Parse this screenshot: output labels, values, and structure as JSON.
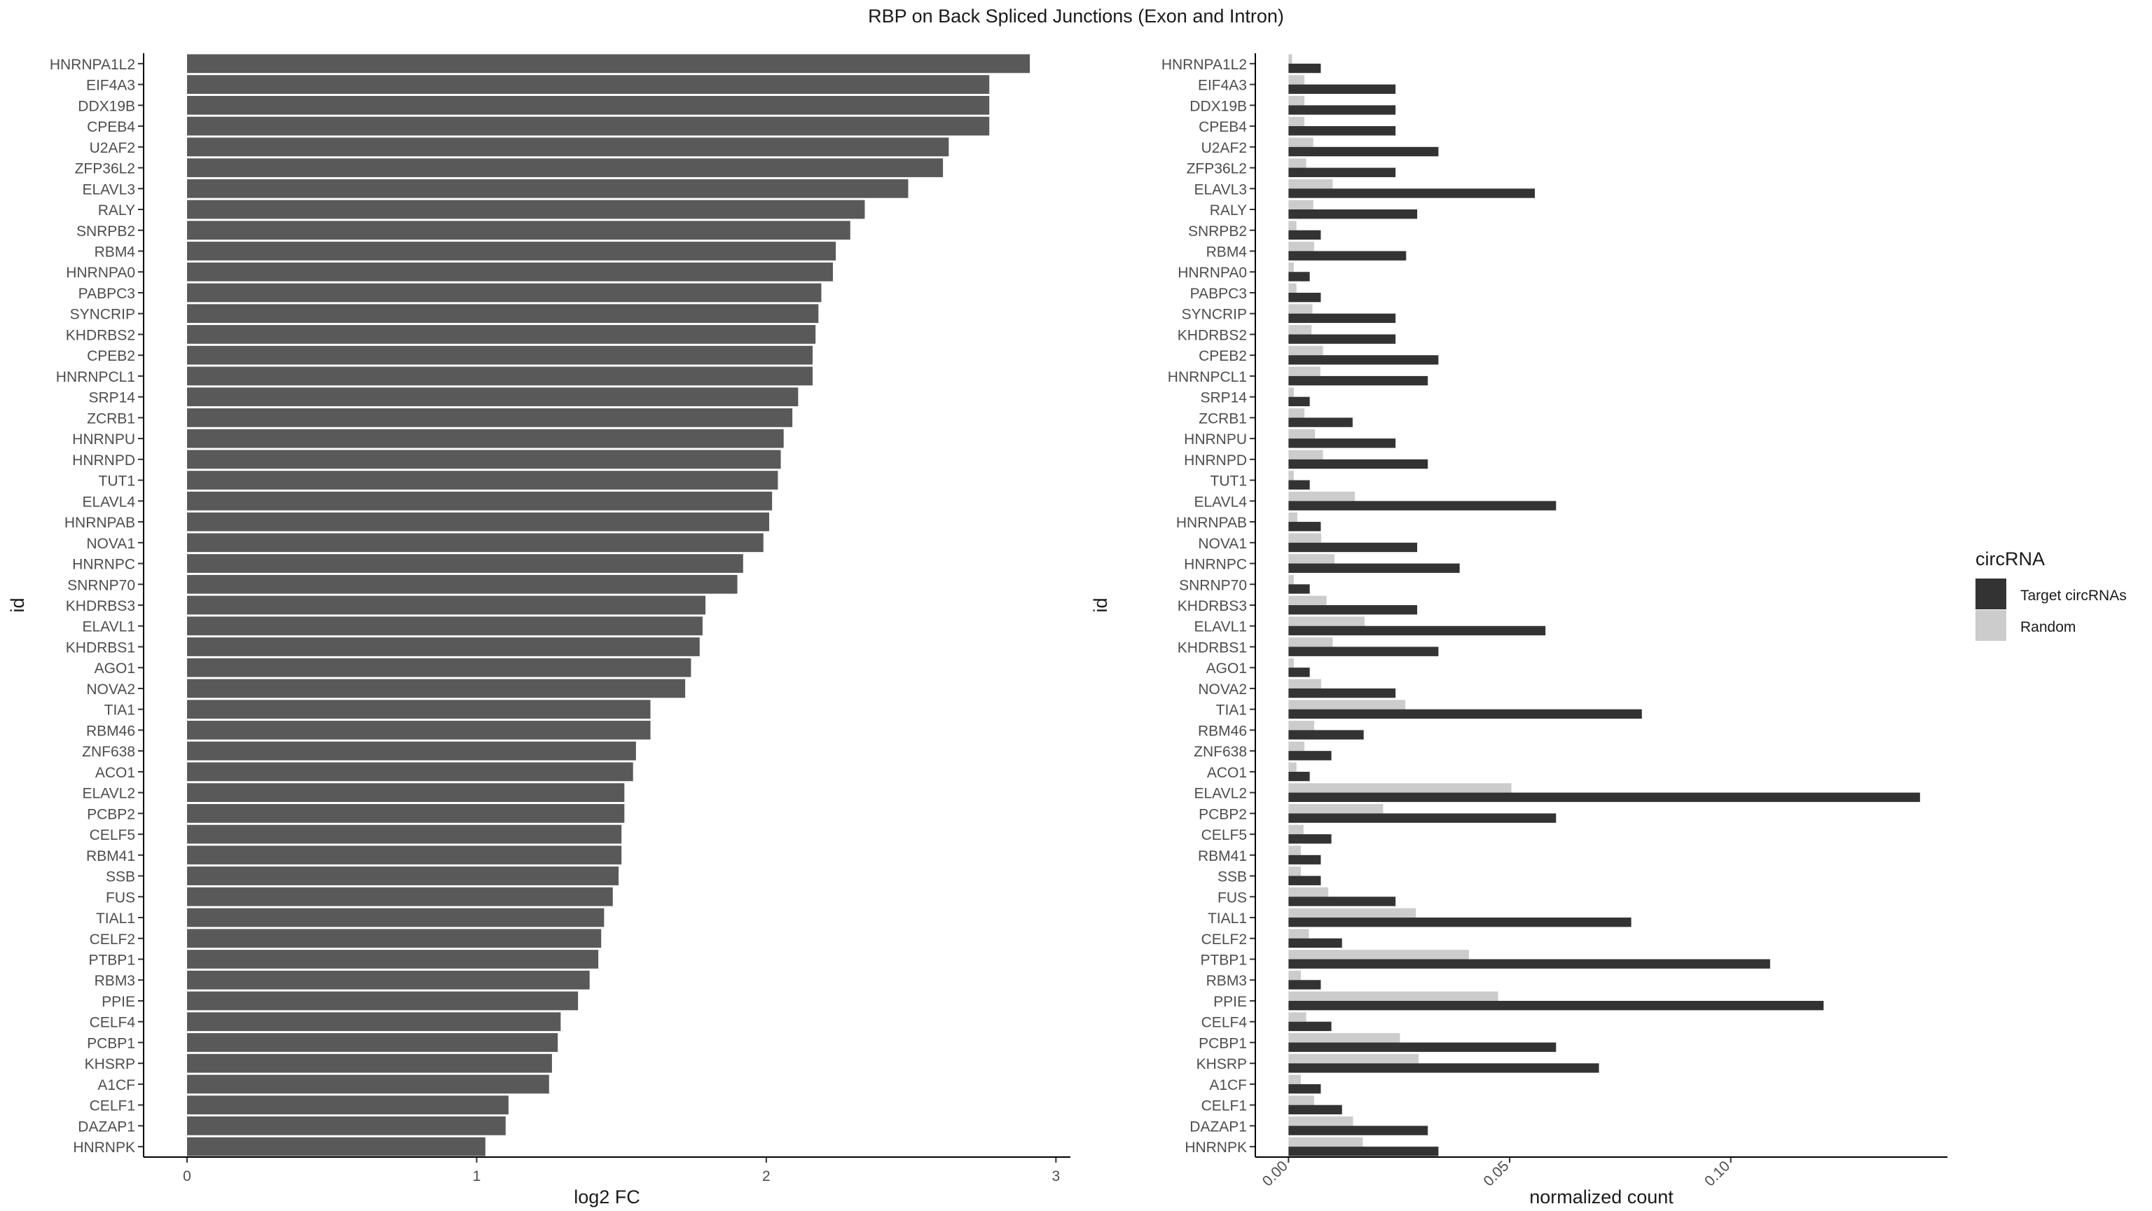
{
  "figure": {
    "title": "RBP on Back Spliced Junctions (Exon and Intron)"
  },
  "chart_data": [
    {
      "type": "bar",
      "orientation": "horizontal",
      "categories": [
        "HNRNPA1L2",
        "EIF4A3",
        "DDX19B",
        "CPEB4",
        "U2AF2",
        "ZFP36L2",
        "ELAVL3",
        "RALY",
        "SNRPB2",
        "RBM4",
        "HNRNPA0",
        "PABPC3",
        "SYNCRIP",
        "KHDRBS2",
        "CPEB2",
        "HNRNPCL1",
        "SRP14",
        "ZCRB1",
        "HNRNPU",
        "HNRNPD",
        "TUT1",
        "ELAVL4",
        "HNRNPAB",
        "NOVA1",
        "HNRNPC",
        "SNRNP70",
        "KHDRBS3",
        "ELAVL1",
        "KHDRBS1",
        "AGO1",
        "NOVA2",
        "TIA1",
        "RBM46",
        "ZNF638",
        "ACO1",
        "ELAVL2",
        "PCBP2",
        "CELF5",
        "RBM41",
        "SSB",
        "FUS",
        "TIAL1",
        "CELF2",
        "PTBP1",
        "RBM3",
        "PPIE",
        "CELF4",
        "PCBP1",
        "KHSRP",
        "A1CF",
        "CELF1",
        "DAZAP1",
        "HNRNPK"
      ],
      "values": [
        2.91,
        2.77,
        2.77,
        2.77,
        2.63,
        2.61,
        2.49,
        2.34,
        2.29,
        2.24,
        2.23,
        2.19,
        2.18,
        2.17,
        2.16,
        2.16,
        2.11,
        2.09,
        2.06,
        2.05,
        2.04,
        2.02,
        2.01,
        1.99,
        1.92,
        1.9,
        1.79,
        1.78,
        1.77,
        1.74,
        1.72,
        1.6,
        1.6,
        1.55,
        1.54,
        1.51,
        1.51,
        1.5,
        1.5,
        1.49,
        1.47,
        1.44,
        1.43,
        1.42,
        1.39,
        1.35,
        1.29,
        1.28,
        1.26,
        1.25,
        1.11,
        1.1,
        1.03
      ],
      "xlabel": "log2 FC",
      "ylabel": "id",
      "xlim": [
        -0.15,
        3.05
      ],
      "xticks": [
        0,
        1,
        2,
        3
      ],
      "bar_color": "#595959"
    },
    {
      "type": "bar",
      "orientation": "horizontal",
      "grouped": true,
      "categories": [
        "HNRNPA1L2",
        "EIF4A3",
        "DDX19B",
        "CPEB4",
        "U2AF2",
        "ZFP36L2",
        "ELAVL3",
        "RALY",
        "SNRPB2",
        "RBM4",
        "HNRNPA0",
        "PABPC3",
        "SYNCRIP",
        "KHDRBS2",
        "CPEB2",
        "HNRNPCL1",
        "SRP14",
        "ZCRB1",
        "HNRNPU",
        "HNRNPD",
        "TUT1",
        "ELAVL4",
        "HNRNPAB",
        "NOVA1",
        "HNRNPC",
        "SNRNP70",
        "KHDRBS3",
        "ELAVL1",
        "KHDRBS1",
        "AGO1",
        "NOVA2",
        "TIA1",
        "RBM46",
        "ZNF638",
        "ACO1",
        "ELAVL2",
        "PCBP2",
        "CELF5",
        "RBM41",
        "SSB",
        "FUS",
        "TIAL1",
        "CELF2",
        "PTBP1",
        "RBM3",
        "PPIE",
        "CELF4",
        "PCBP1",
        "KHSRP",
        "A1CF",
        "CELF1",
        "DAZAP1",
        "HNRNPK"
      ],
      "series": [
        {
          "name": "Target circRNAs",
          "color": "#333333",
          "values": [
            0.0073,
            0.0242,
            0.0242,
            0.0242,
            0.0339,
            0.0242,
            0.0557,
            0.0291,
            0.0073,
            0.0266,
            0.0048,
            0.0073,
            0.0242,
            0.0242,
            0.0339,
            0.0315,
            0.0048,
            0.0145,
            0.0242,
            0.0315,
            0.0048,
            0.0605,
            0.0073,
            0.0291,
            0.0387,
            0.0048,
            0.0291,
            0.0581,
            0.0339,
            0.0048,
            0.0242,
            0.0799,
            0.017,
            0.0097,
            0.0048,
            0.1428,
            0.0605,
            0.0097,
            0.0073,
            0.0073,
            0.0242,
            0.0775,
            0.0121,
            0.1089,
            0.0073,
            0.121,
            0.0097,
            0.0605,
            0.0702,
            0.0073,
            0.0121,
            0.0315,
            0.0339
          ]
        },
        {
          "name": "Random",
          "color": "#cccccc",
          "values": [
            0.0008,
            0.0036,
            0.0036,
            0.0036,
            0.0056,
            0.004,
            0.01,
            0.0056,
            0.0018,
            0.0058,
            0.0012,
            0.0018,
            0.0054,
            0.0052,
            0.0078,
            0.0072,
            0.0012,
            0.0036,
            0.006,
            0.0078,
            0.0012,
            0.015,
            0.002,
            0.0074,
            0.0104,
            0.0012,
            0.0086,
            0.0172,
            0.01,
            0.0012,
            0.0074,
            0.0264,
            0.0058,
            0.0036,
            0.0018,
            0.0504,
            0.0214,
            0.0034,
            0.0028,
            0.0028,
            0.009,
            0.0288,
            0.0046,
            0.0408,
            0.0028,
            0.0474,
            0.004,
            0.0252,
            0.0294,
            0.0028,
            0.0058,
            0.0146,
            0.0168
          ]
        }
      ],
      "xlabel": "normalized count",
      "ylabel": "id",
      "xlim": [
        -0.0075,
        0.149
      ],
      "xticks": [
        0.0,
        0.05,
        0.1
      ],
      "xtick_labels": [
        "0.00",
        "0.05",
        "0.10"
      ],
      "legend": {
        "title": "circRNA",
        "placement": "right"
      }
    }
  ]
}
